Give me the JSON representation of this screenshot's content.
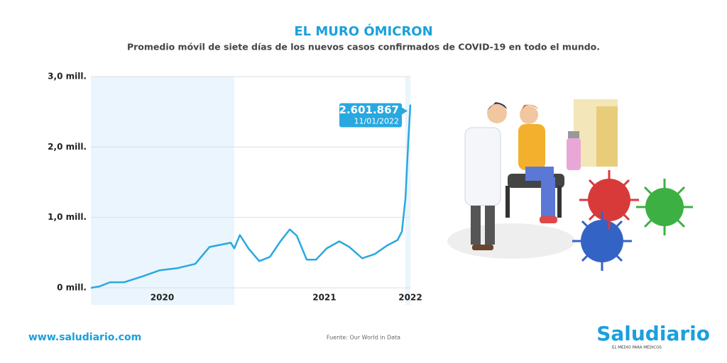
{
  "chart_data": {
    "type": "line",
    "title": "EL MURO ÓMICRON",
    "subtitle": "Promedio móvil de siete días de los nuevos casos confirmados de COVID-19 en todo el mundo.",
    "x": [
      2020.06,
      2020.113,
      2020.178,
      2020.266,
      2020.375,
      2020.485,
      2020.594,
      2020.704,
      2020.791,
      2020.879,
      2020.923,
      2020.944,
      2020.979,
      2021.032,
      2021.098,
      2021.164,
      2021.229,
      2021.286,
      2021.33,
      2021.391,
      2021.448,
      2021.514,
      2021.592,
      2021.654,
      2021.733,
      2021.811,
      2021.886,
      2021.951,
      2021.978,
      2022.0,
      2022.017,
      2022.03
    ],
    "values": [
      0,
      20000,
      80000,
      80000,
      160000,
      250000,
      280000,
      340000,
      580000,
      620000,
      640000,
      560000,
      750000,
      560000,
      380000,
      440000,
      660000,
      830000,
      740000,
      400000,
      400000,
      560000,
      660000,
      580000,
      420000,
      480000,
      600000,
      680000,
      800000,
      1270000,
      2070000,
      2601867
    ],
    "value_labels": [
      null,
      null,
      null,
      null,
      null,
      null,
      null,
      null,
      null,
      null,
      null,
      null,
      null,
      null,
      null,
      null,
      null,
      null,
      null,
      null,
      null,
      null,
      null,
      null,
      null,
      null,
      null,
      null,
      null,
      null,
      null,
      "2.601.867"
    ],
    "annotation_date": "11/01/2022",
    "color": "#29a8e0",
    "xlim": [
      2020.06,
      2022.03
    ],
    "xticks": [
      {
        "value": 2020.5,
        "label": "2020"
      },
      {
        "value": 2021.5,
        "label": "2021"
      },
      {
        "value": 2022.03,
        "label": "2022"
      }
    ],
    "ylim": [
      0,
      3000000
    ],
    "yticks": [
      {
        "value": 0,
        "label": "0 mill."
      },
      {
        "value": 1000000,
        "label": "1,0 mill."
      },
      {
        "value": 2000000,
        "label": "2,0 mill."
      },
      {
        "value": 3000000,
        "label": "3,0 mill."
      }
    ],
    "grid": true
  },
  "footer": {
    "website": "www.saludiario.com",
    "source": "Fuente: Our World in Data",
    "brand": "Saludiario",
    "tagline": "EL MEDIO PARA MÉDICOS"
  }
}
